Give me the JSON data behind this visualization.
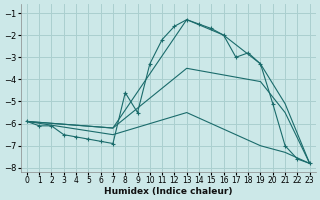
{
  "xlabel": "Humidex (Indice chaleur)",
  "bg_color": "#cce8e8",
  "grid_color": "#aacfcf",
  "line_color": "#1a6b6b",
  "xlim": [
    -0.5,
    23.5
  ],
  "ylim": [
    -8.2,
    -0.6
  ],
  "yticks": [
    -8,
    -7,
    -6,
    -5,
    -4,
    -3,
    -2,
    -1
  ],
  "xticks": [
    0,
    1,
    2,
    3,
    4,
    5,
    6,
    7,
    8,
    9,
    10,
    11,
    12,
    13,
    14,
    15,
    16,
    17,
    18,
    19,
    20,
    21,
    22,
    23
  ],
  "series": [
    {
      "x": [
        0,
        1,
        2,
        3,
        4,
        5,
        6,
        7,
        8,
        9,
        10,
        11,
        12,
        13,
        14,
        15,
        16,
        17,
        18,
        19,
        20,
        21,
        22,
        23
      ],
      "y": [
        -5.9,
        -6.1,
        -6.1,
        -6.5,
        -6.6,
        -6.7,
        -6.8,
        -6.9,
        -4.6,
        -5.5,
        -3.3,
        -2.2,
        -1.6,
        -1.3,
        -1.5,
        -1.7,
        -2.0,
        -3.0,
        -2.8,
        -3.3,
        -5.1,
        -7.0,
        -7.6,
        -7.8
      ],
      "marker": "+"
    },
    {
      "x": [
        0,
        7,
        13,
        16,
        19,
        21,
        23
      ],
      "y": [
        -5.9,
        -6.2,
        -1.3,
        -2.0,
        -3.3,
        -5.1,
        -7.8
      ],
      "marker": null
    },
    {
      "x": [
        0,
        7,
        13,
        19,
        21,
        23
      ],
      "y": [
        -5.9,
        -6.2,
        -3.5,
        -4.1,
        -5.5,
        -7.8
      ],
      "marker": null
    },
    {
      "x": [
        0,
        7,
        13,
        19,
        21,
        23
      ],
      "y": [
        -5.9,
        -6.5,
        -5.5,
        -7.0,
        -7.3,
        -7.8
      ],
      "marker": null
    }
  ]
}
